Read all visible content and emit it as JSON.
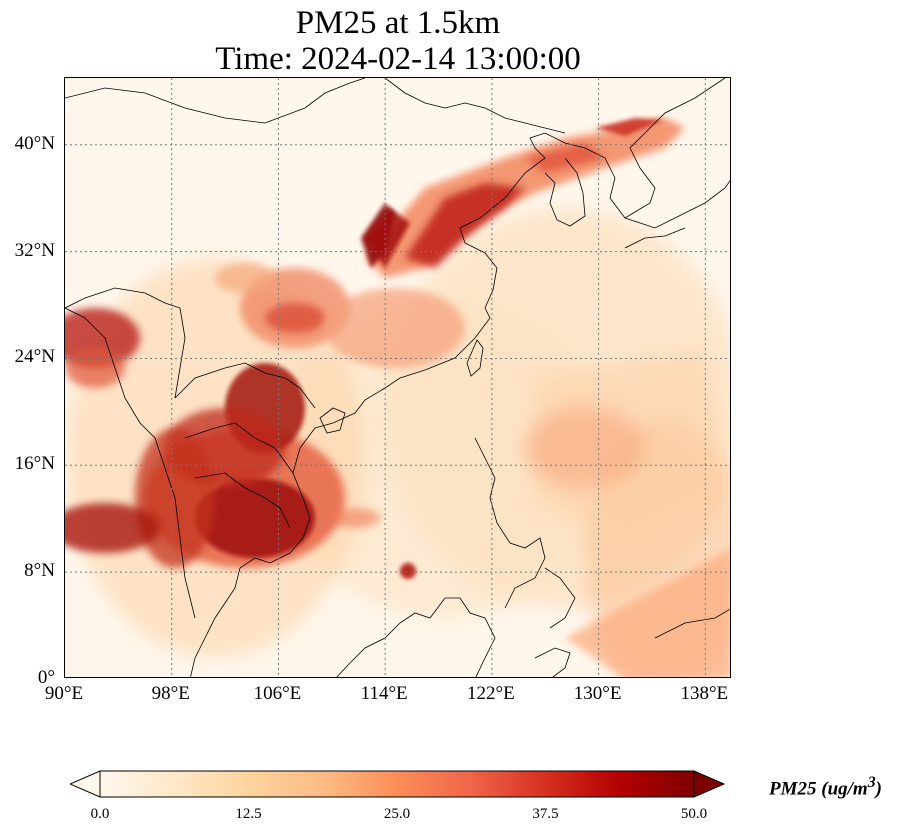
{
  "title_line1": "PM25 at 1.5km",
  "title_line2": "Time: 2024-02-14 13:00:00",
  "map": {
    "lon_range": [
      90,
      140
    ],
    "lat_range": [
      0,
      45
    ],
    "grid": true,
    "projection": "PlateCarree",
    "y_ticks": [
      {
        "lat": 0,
        "label": "0°"
      },
      {
        "lat": 8,
        "label": "8°N"
      },
      {
        "lat": 16,
        "label": "16°N"
      },
      {
        "lat": 24,
        "label": "24°N"
      },
      {
        "lat": 32,
        "label": "32°N"
      },
      {
        "lat": 40,
        "label": "40°N"
      }
    ],
    "x_ticks": [
      {
        "lon": 90,
        "label": "90°E"
      },
      {
        "lon": 98,
        "label": "98°E"
      },
      {
        "lon": 106,
        "label": "106°E"
      },
      {
        "lon": 114,
        "label": "114°E"
      },
      {
        "lon": 122,
        "label": "122°E"
      },
      {
        "lon": 130,
        "label": "130°E"
      },
      {
        "lon": 138,
        "label": "138°E"
      }
    ]
  },
  "colorbar": {
    "colormap": "OrRd",
    "min": 0.0,
    "max": 50.0,
    "extend": "both",
    "ticks": [
      "0.0",
      "12.5",
      "25.0",
      "37.5",
      "50.0"
    ],
    "label": "PM25 (ug/m3)",
    "label_base": "PM25 (ug/m",
    "label_sup": "3",
    "label_tail": ")",
    "colors": [
      "#fff7ec",
      "#fee8c8",
      "#fdd49e",
      "#fdbb84",
      "#fc8d59",
      "#ef6548",
      "#d7301f",
      "#b30000",
      "#7f0000"
    ]
  },
  "plumes": [
    {
      "region": "north-china-plain",
      "lon": 113.5,
      "lat": 34.5,
      "value": 45
    },
    {
      "region": "yellow-sea-plume",
      "lon": 118,
      "lat": 37.5,
      "value": 38
    },
    {
      "region": "bohai-korea",
      "lon": 126,
      "lat": 39.5,
      "value": 30
    },
    {
      "region": "northeast-sea-japan",
      "lon": 133,
      "lat": 41.5,
      "value": 35
    },
    {
      "region": "sichuan-basin",
      "lon": 107.5,
      "lat": 30,
      "value": 30
    },
    {
      "region": "central-china",
      "lon": 112,
      "lat": 28,
      "value": 25
    },
    {
      "region": "laos-vietnam-north",
      "lon": 104,
      "lat": 19.5,
      "value": 48
    },
    {
      "region": "thailand-cambodia",
      "lon": 103,
      "lat": 13,
      "value": 50
    },
    {
      "region": "myanmar-south",
      "lon": 97.5,
      "lat": 14.5,
      "value": 42
    },
    {
      "region": "bay-of-bengal-east",
      "lon": 92,
      "lat": 11.5,
      "value": 45
    },
    {
      "region": "bangladesh-northeast-india",
      "lon": 92,
      "lat": 26,
      "value": 40
    },
    {
      "region": "south-china-sea-spot",
      "lon": 116,
      "lat": 8.5,
      "value": 40
    },
    {
      "region": "west-pacific-plume",
      "lon": 130,
      "lat": 17,
      "value": 22
    },
    {
      "region": "southeast-band",
      "lon": 135,
      "lat": 5,
      "value": 25
    }
  ]
}
